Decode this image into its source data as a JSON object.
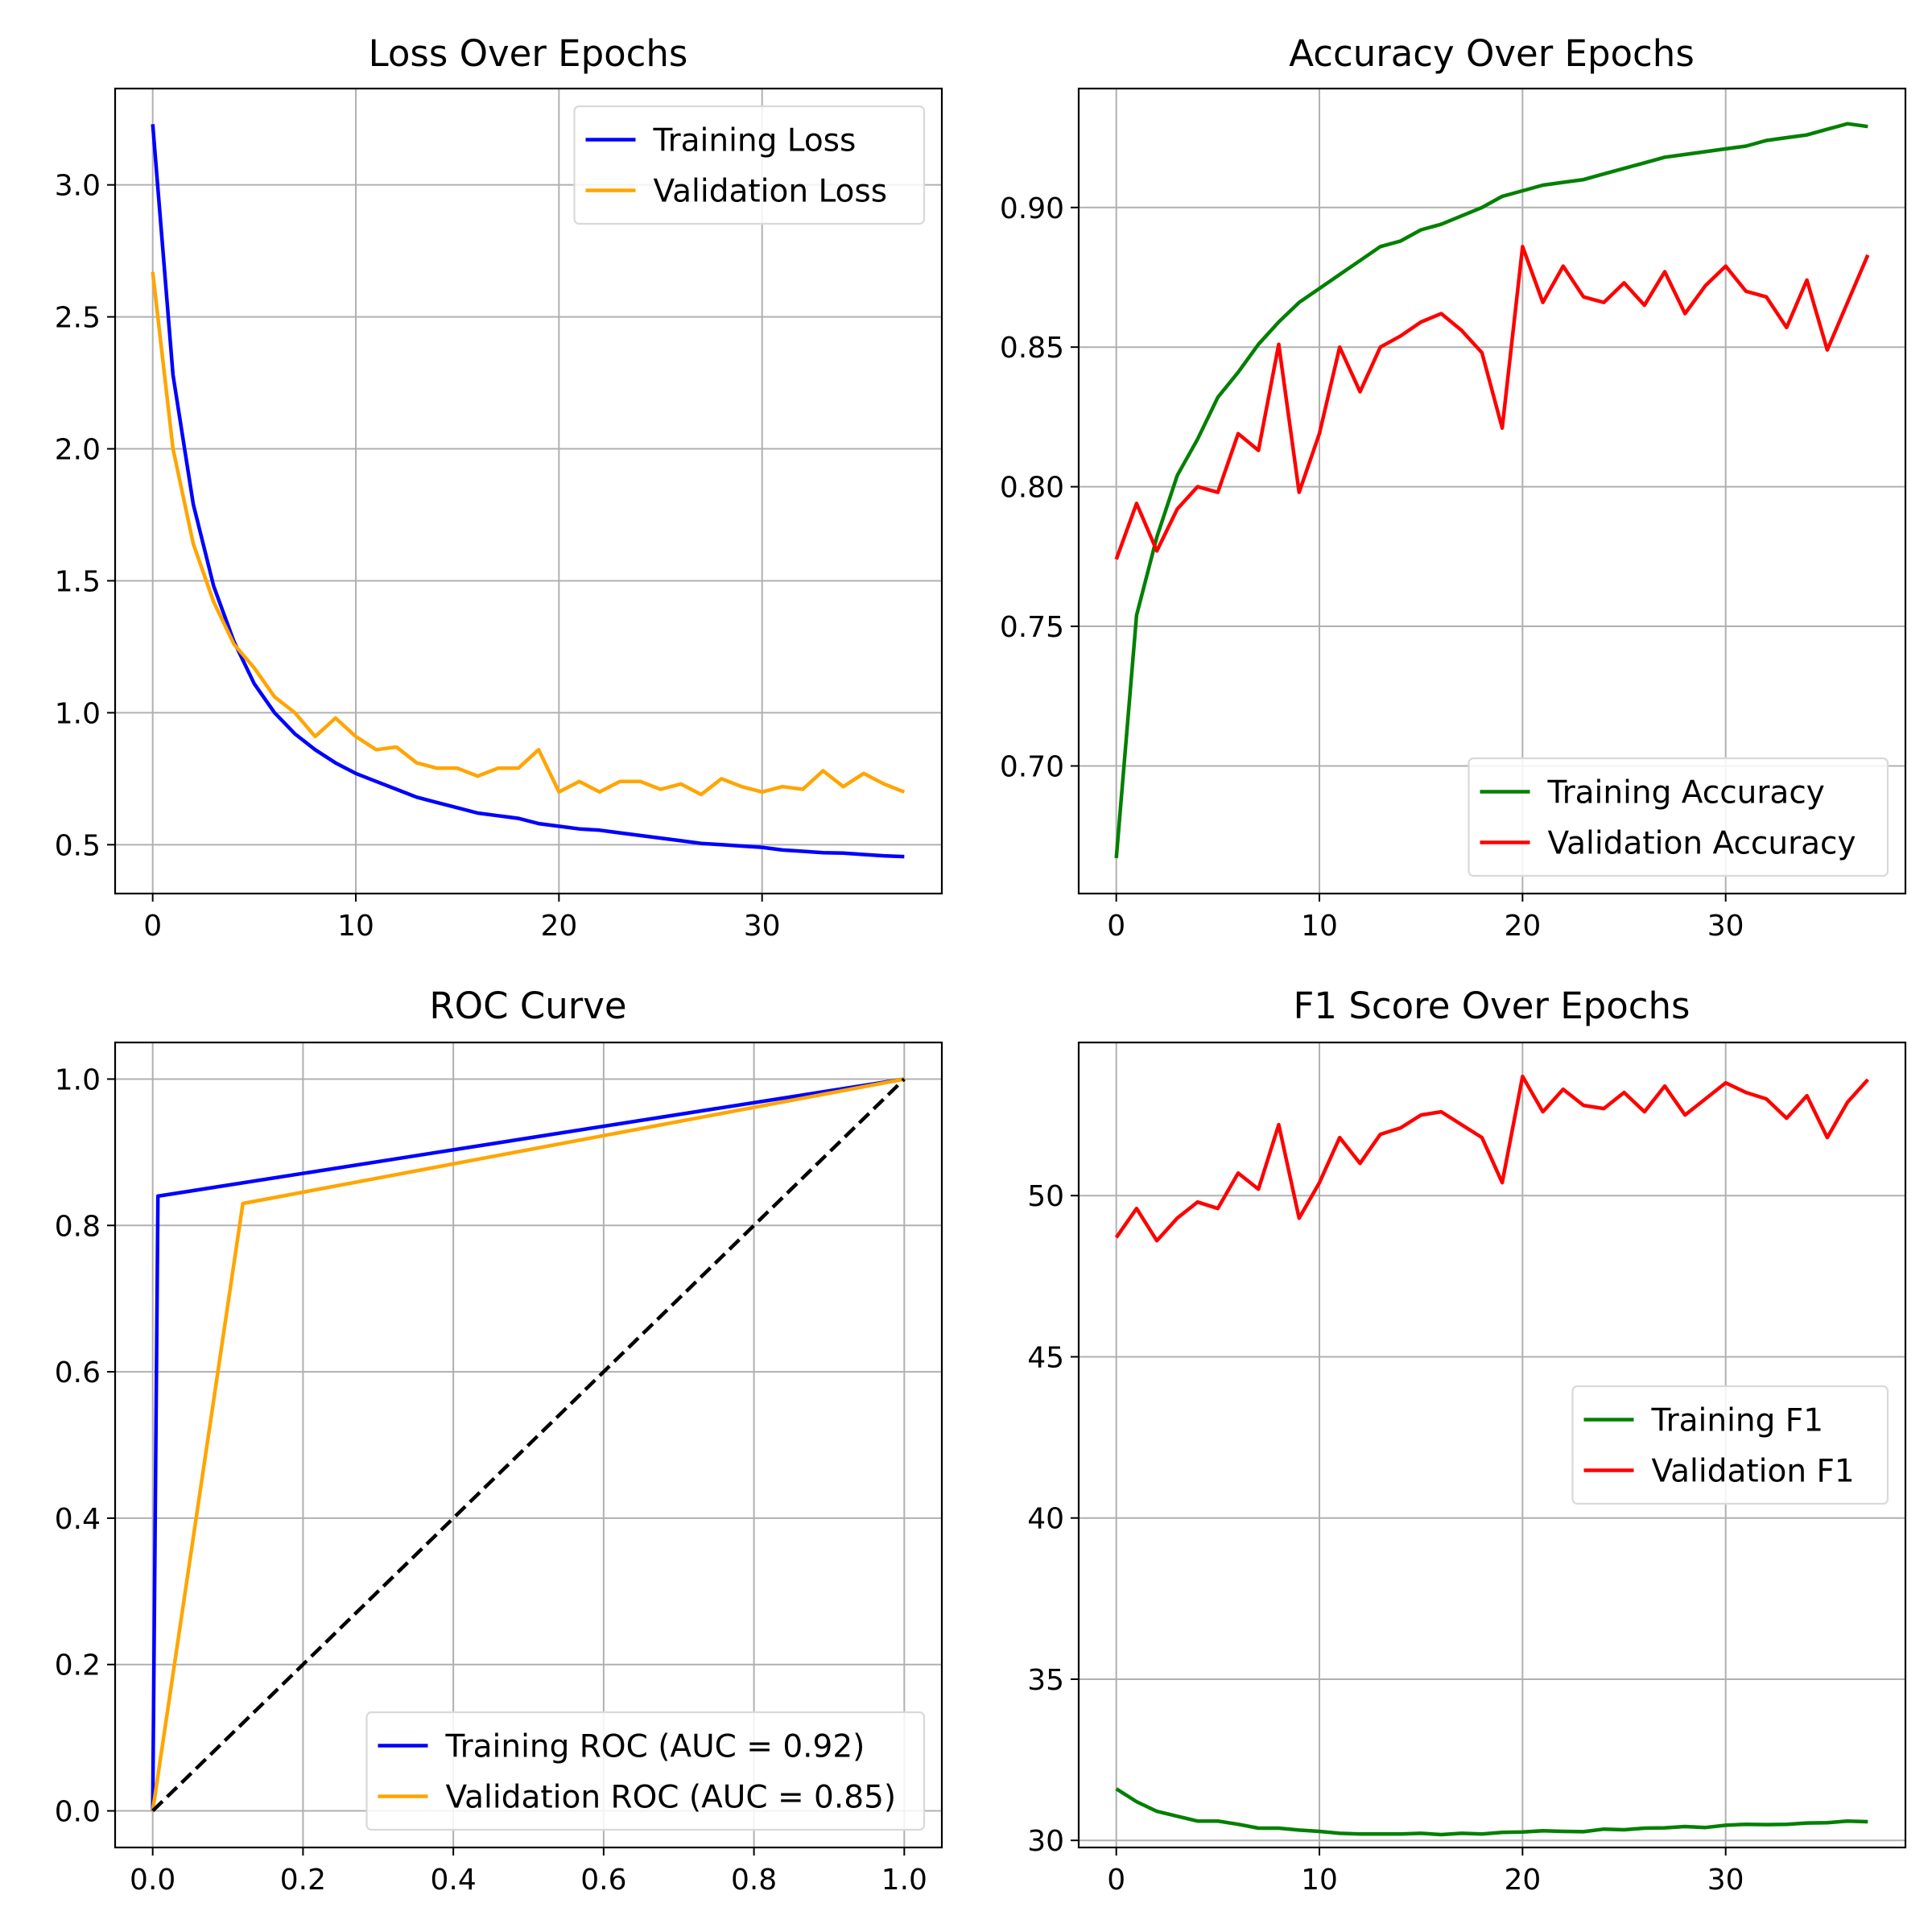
{
  "chart_data": [
    {
      "type": "line",
      "title": "Loss Over Epochs",
      "xlabel": "",
      "ylabel": "",
      "xlim": [
        -1.85,
        38.85
      ],
      "ylim": [
        0.315,
        3.365
      ],
      "xticks": [
        0,
        10,
        20,
        30
      ],
      "yticks": [
        0.5,
        1.0,
        1.5,
        2.0,
        2.5,
        3.0
      ],
      "ytick_labels": [
        "0.5",
        "1.0",
        "1.5",
        "2.0",
        "2.5",
        "3.0"
      ],
      "grid": true,
      "legend": "top-right",
      "x": [
        0,
        1,
        2,
        3,
        4,
        5,
        6,
        7,
        8,
        9,
        10,
        11,
        12,
        13,
        14,
        15,
        16,
        17,
        18,
        19,
        20,
        21,
        22,
        23,
        24,
        25,
        26,
        27,
        28,
        29,
        30,
        31,
        32,
        33,
        34,
        35,
        36,
        37
      ],
      "series": [
        {
          "name": "Training Loss",
          "color": "#0000ff",
          "values": [
            3.23,
            2.28,
            1.79,
            1.48,
            1.27,
            1.11,
            1.0,
            0.92,
            0.86,
            0.81,
            0.77,
            0.74,
            0.71,
            0.68,
            0.66,
            0.64,
            0.62,
            0.61,
            0.6,
            0.58,
            0.57,
            0.56,
            0.555,
            0.545,
            0.535,
            0.525,
            0.515,
            0.505,
            0.5,
            0.495,
            0.49,
            0.48,
            0.475,
            0.47,
            0.468,
            0.463,
            0.458,
            0.455
          ]
        },
        {
          "name": "Validation Loss",
          "color": "#ffa500",
          "values": [
            2.67,
            2.0,
            1.64,
            1.42,
            1.26,
            1.17,
            1.06,
            1.0,
            0.91,
            0.98,
            0.91,
            0.86,
            0.87,
            0.81,
            0.79,
            0.79,
            0.76,
            0.79,
            0.79,
            0.86,
            0.7,
            0.74,
            0.7,
            0.74,
            0.74,
            0.71,
            0.73,
            0.69,
            0.75,
            0.72,
            0.7,
            0.72,
            0.71,
            0.78,
            0.72,
            0.77,
            0.73,
            0.7
          ]
        }
      ]
    },
    {
      "type": "line",
      "title": "Accuracy Over Epochs",
      "xlabel": "",
      "ylabel": "",
      "xlim": [
        -1.85,
        38.85
      ],
      "ylim": [
        0.6543,
        0.9426
      ],
      "xticks": [
        0,
        10,
        20,
        30
      ],
      "yticks": [
        0.7,
        0.75,
        0.8,
        0.85,
        0.9
      ],
      "ytick_labels": [
        "0.70",
        "0.75",
        "0.80",
        "0.85",
        "0.90"
      ],
      "grid": true,
      "legend": "bottom-right",
      "x": [
        0,
        1,
        2,
        3,
        4,
        5,
        6,
        7,
        8,
        9,
        10,
        11,
        12,
        13,
        14,
        15,
        16,
        17,
        18,
        19,
        20,
        21,
        22,
        23,
        24,
        25,
        26,
        27,
        28,
        29,
        30,
        31,
        32,
        33,
        34,
        35,
        36,
        37
      ],
      "series": [
        {
          "name": "Training Accuracy",
          "color": "#008000",
          "values": [
            0.667,
            0.754,
            0.782,
            0.804,
            0.817,
            0.832,
            0.841,
            0.851,
            0.859,
            0.866,
            0.871,
            0.876,
            0.881,
            0.886,
            0.888,
            0.892,
            0.894,
            0.897,
            0.9,
            0.904,
            0.906,
            0.908,
            0.909,
            0.91,
            0.912,
            0.914,
            0.916,
            0.918,
            0.919,
            0.92,
            0.921,
            0.922,
            0.924,
            0.925,
            0.926,
            0.928,
            0.93,
            0.929
          ]
        },
        {
          "name": "Validation Accuracy",
          "color": "#ff0000",
          "values": [
            0.774,
            0.794,
            0.777,
            0.792,
            0.8,
            0.798,
            0.819,
            0.813,
            0.851,
            0.798,
            0.819,
            0.85,
            0.834,
            0.85,
            0.854,
            0.859,
            0.862,
            0.856,
            0.848,
            0.821,
            0.886,
            0.866,
            0.879,
            0.868,
            0.866,
            0.873,
            0.865,
            0.877,
            0.862,
            0.872,
            0.879,
            0.87,
            0.868,
            0.857,
            0.874,
            0.849,
            0.866,
            0.883
          ]
        }
      ]
    },
    {
      "type": "line",
      "title": "ROC Curve",
      "xlabel": "",
      "ylabel": "",
      "xlim": [
        -0.05,
        1.05
      ],
      "ylim": [
        -0.05,
        1.05
      ],
      "xticks": [
        0.0,
        0.2,
        0.4,
        0.6,
        0.8,
        1.0
      ],
      "xtick_labels": [
        "0.0",
        "0.2",
        "0.4",
        "0.6",
        "0.8",
        "1.0"
      ],
      "yticks": [
        0.0,
        0.2,
        0.4,
        0.6,
        0.8,
        1.0
      ],
      "ytick_labels": [
        "0.0",
        "0.2",
        "0.4",
        "0.6",
        "0.8",
        "1.0"
      ],
      "grid": true,
      "legend": "bottom-right",
      "series": [
        {
          "name": "Training ROC (AUC = 0.92)",
          "color": "#0000ff",
          "x": [
            0.0,
            0.007,
            1.0
          ],
          "values": [
            0.0,
            0.84,
            1.0
          ]
        },
        {
          "name": "Validation ROC (AUC = 0.85)",
          "color": "#ffa500",
          "x": [
            0.0,
            0.12,
            1.0
          ],
          "values": [
            0.0,
            0.83,
            1.0
          ]
        },
        {
          "color": "#000000",
          "dashed": true,
          "x": [
            0.0,
            1.0
          ],
          "values": [
            0.0,
            1.0
          ]
        }
      ]
    },
    {
      "type": "line",
      "title": "F1 Score Over Epochs",
      "xlabel": "",
      "ylabel": "",
      "xlim": [
        -1.85,
        38.85
      ],
      "ylim": [
        29.78,
        54.75
      ],
      "xticks": [
        0,
        10,
        20,
        30
      ],
      "yticks": [
        30,
        35,
        40,
        45,
        50
      ],
      "ytick_labels": [
        "30",
        "35",
        "40",
        "45",
        "50"
      ],
      "grid": true,
      "legend": "center-right",
      "x": [
        0,
        1,
        2,
        3,
        4,
        5,
        6,
        7,
        8,
        9,
        10,
        11,
        12,
        13,
        14,
        15,
        16,
        17,
        18,
        19,
        20,
        21,
        22,
        23,
        24,
        25,
        26,
        27,
        28,
        29,
        30,
        31,
        32,
        33,
        34,
        35,
        36,
        37
      ],
      "series": [
        {
          "name": "Training F1",
          "color": "#008000",
          "values": [
            31.6,
            31.2,
            30.9,
            30.75,
            30.6,
            30.6,
            30.5,
            30.38,
            30.38,
            30.32,
            30.28,
            30.22,
            30.2,
            30.2,
            30.2,
            30.22,
            30.18,
            30.22,
            30.2,
            30.25,
            30.26,
            30.3,
            30.28,
            30.27,
            30.35,
            30.33,
            30.38,
            30.39,
            30.43,
            30.4,
            30.47,
            30.5,
            30.49,
            30.5,
            30.54,
            30.55,
            30.6,
            30.58
          ]
        },
        {
          "name": "Validation F1",
          "color": "#ff0000",
          "values": [
            48.7,
            49.6,
            48.6,
            49.3,
            49.8,
            49.6,
            50.7,
            50.2,
            52.2,
            49.3,
            50.4,
            51.8,
            51.0,
            51.9,
            52.1,
            52.5,
            52.6,
            52.2,
            51.8,
            50.4,
            53.7,
            52.6,
            53.3,
            52.8,
            52.7,
            53.2,
            52.6,
            53.4,
            52.5,
            53.0,
            53.5,
            53.2,
            53.0,
            52.4,
            53.1,
            51.8,
            52.9,
            53.6
          ]
        }
      ]
    }
  ]
}
